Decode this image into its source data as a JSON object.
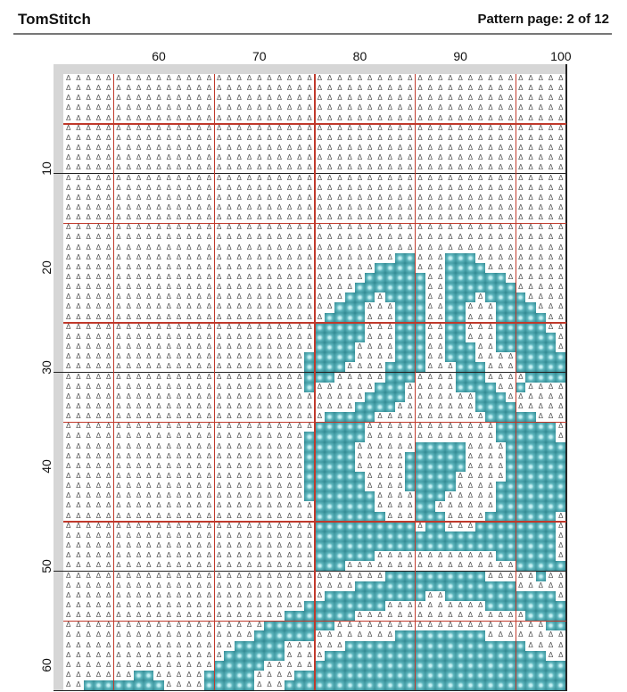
{
  "header": {
    "title": "TomStitch",
    "page_label": "Pattern page: 2 of 12"
  },
  "axes": {
    "column_labels": [
      {
        "label": "60",
        "col": 10
      },
      {
        "label": "70",
        "col": 20
      },
      {
        "label": "80",
        "col": 30
      },
      {
        "label": "90",
        "col": 40
      },
      {
        "label": "100",
        "col": 50
      }
    ],
    "row_labels": [
      {
        "label": "10",
        "row": 10
      },
      {
        "label": "20",
        "row": 20
      },
      {
        "label": "30",
        "row": 30
      },
      {
        "label": "40",
        "row": 40
      },
      {
        "label": "50",
        "row": 50
      },
      {
        "label": "60",
        "row": 60
      }
    ]
  },
  "pattern": {
    "columns": 50,
    "rows": 62,
    "background_symbol": "Δ",
    "stitch_color": "#3f99a3",
    "grid_color": "#222222",
    "major_line_color": "#c0392b",
    "header_color": "#d6d6d6",
    "stitch_runs": {
      "19": [
        [
          34,
          35
        ],
        [
          39,
          41
        ]
      ],
      "20": [
        [
          32,
          35
        ],
        [
          39,
          42
        ]
      ],
      "21": [
        [
          31,
          36
        ],
        [
          39,
          44
        ]
      ],
      "22": [
        [
          30,
          36
        ],
        [
          39,
          45
        ]
      ],
      "23": [
        [
          29,
          31
        ],
        [
          33,
          36
        ],
        [
          39,
          41
        ],
        [
          43,
          46
        ]
      ],
      "24": [
        [
          28,
          30
        ],
        [
          34,
          36
        ],
        [
          39,
          40
        ],
        [
          44,
          47
        ]
      ],
      "25": [
        [
          27,
          30
        ],
        [
          34,
          36
        ],
        [
          39,
          40
        ],
        [
          44,
          48
        ]
      ],
      "26": [
        [
          26,
          30
        ],
        [
          34,
          36
        ],
        [
          39,
          40
        ],
        [
          44,
          48
        ]
      ],
      "27": [
        [
          26,
          30
        ],
        [
          34,
          36
        ],
        [
          39,
          40
        ],
        [
          44,
          49
        ]
      ],
      "28": [
        [
          26,
          29
        ],
        [
          34,
          36
        ],
        [
          39,
          41
        ],
        [
          44,
          49
        ]
      ],
      "29": [
        [
          25,
          29
        ],
        [
          34,
          36
        ],
        [
          39,
          41
        ],
        [
          46,
          50
        ]
      ],
      "30": [
        [
          25,
          28
        ],
        [
          33,
          36
        ],
        [
          40,
          42
        ],
        [
          46,
          50
        ]
      ],
      "31": [
        [
          25,
          27
        ],
        [
          33,
          35
        ],
        [
          40,
          42
        ],
        [
          47,
          50
        ]
      ],
      "32": [
        [
          25,
          25
        ],
        [
          32,
          34
        ],
        [
          40,
          43
        ],
        [
          46,
          46
        ]
      ],
      "33": [
        [
          31,
          34
        ],
        [
          42,
          44
        ]
      ],
      "34": [
        [
          30,
          33
        ],
        [
          42,
          45
        ]
      ],
      "35": [
        [
          27,
          31
        ],
        [
          43,
          47
        ]
      ],
      "36": [
        [
          26,
          30
        ],
        [
          44,
          49
        ]
      ],
      "37": [
        [
          25,
          30
        ],
        [
          44,
          49
        ]
      ],
      "38": [
        [
          25,
          29
        ],
        [
          36,
          40
        ],
        [
          45,
          50
        ]
      ],
      "39": [
        [
          25,
          29
        ],
        [
          35,
          40
        ],
        [
          45,
          50
        ]
      ],
      "40": [
        [
          25,
          29
        ],
        [
          35,
          40
        ],
        [
          45,
          50
        ]
      ],
      "41": [
        [
          25,
          30
        ],
        [
          35,
          39
        ],
        [
          45,
          50
        ]
      ],
      "42": [
        [
          25,
          30
        ],
        [
          35,
          39
        ],
        [
          44,
          50
        ]
      ],
      "43": [
        [
          25,
          31
        ],
        [
          36,
          38
        ],
        [
          44,
          50
        ]
      ],
      "44": [
        [
          26,
          31
        ],
        [
          36,
          37
        ],
        [
          44,
          50
        ]
      ],
      "45": [
        [
          26,
          32
        ],
        [
          36,
          38
        ],
        [
          43,
          49
        ]
      ],
      "46": [
        [
          26,
          35
        ],
        [
          37,
          38
        ],
        [
          42,
          49
        ]
      ],
      "47": [
        [
          26,
          49
        ]
      ],
      "48": [
        [
          26,
          49
        ]
      ],
      "49": [
        [
          26,
          31
        ],
        [
          44,
          49
        ]
      ],
      "50": [
        [
          26,
          28
        ],
        [
          46,
          50
        ]
      ],
      "51": [
        [
          33,
          42
        ],
        [
          48,
          48
        ]
      ],
      "52": [
        [
          30,
          45
        ]
      ],
      "53": [
        [
          27,
          36
        ],
        [
          39,
          49
        ]
      ],
      "54": [
        [
          25,
          32
        ],
        [
          43,
          50
        ]
      ],
      "55": [
        [
          23,
          29
        ],
        [
          47,
          50
        ]
      ],
      "56": [
        [
          21,
          27
        ],
        [
          49,
          50
        ]
      ],
      "57": [
        [
          20,
          25
        ],
        [
          34,
          42
        ]
      ],
      "58": [
        [
          18,
          22
        ],
        [
          29,
          46
        ]
      ],
      "59": [
        [
          17,
          22
        ],
        [
          27,
          48
        ]
      ],
      "60": [
        [
          16,
          20
        ],
        [
          26,
          50
        ]
      ],
      "61": [
        [
          8,
          9
        ],
        [
          15,
          19
        ],
        [
          24,
          50
        ]
      ],
      "62": [
        [
          3,
          10
        ],
        [
          15,
          19
        ],
        [
          23,
          50
        ]
      ]
    }
  }
}
